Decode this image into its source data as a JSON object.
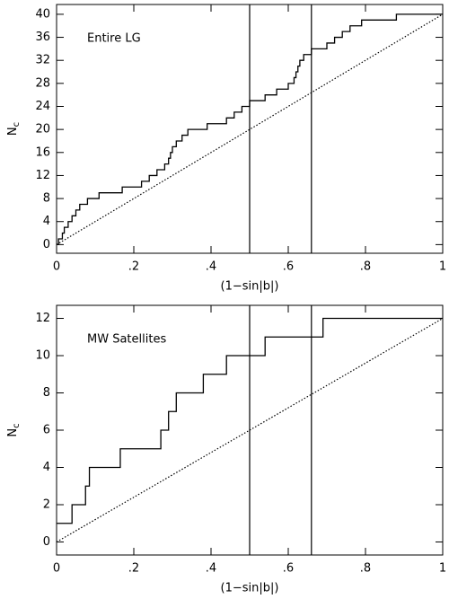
{
  "chart_data": [
    {
      "type": "step",
      "annotation": "Entire LG",
      "xlabel": "(1−sin|b|)",
      "ylabel": "N",
      "ylabel_sub": "c",
      "xlim": [
        0,
        1
      ],
      "ylim": [
        -1.5,
        41.7
      ],
      "xticks": [
        0,
        {
          "value": 0.2,
          "label": ".2"
        },
        {
          "value": 0.4,
          "label": ".4"
        },
        {
          "value": 0.6,
          "label": ".6"
        },
        {
          "value": 0.8,
          "label": ".8"
        },
        1
      ],
      "yticks": [
        0,
        4,
        8,
        12,
        16,
        20,
        24,
        28,
        32,
        36,
        40
      ],
      "vlines": [
        0.5,
        0.66
      ],
      "series": [
        {
          "style": "step",
          "color": "#000000",
          "x": [
            0,
            0.005,
            0.015,
            0.02,
            0.03,
            0.04,
            0.05,
            0.06,
            0.08,
            0.11,
            0.17,
            0.22,
            0.24,
            0.26,
            0.28,
            0.29,
            0.295,
            0.3,
            0.31,
            0.325,
            0.34,
            0.39,
            0.44,
            0.46,
            0.48,
            0.5,
            0.54,
            0.57,
            0.6,
            0.615,
            0.62,
            0.625,
            0.63,
            0.64,
            0.66,
            0.7,
            0.72,
            0.74,
            0.76,
            0.79,
            0.88,
            1
          ],
          "values": [
            0,
            1,
            2,
            3,
            4,
            5,
            6,
            7,
            8,
            9,
            10,
            11,
            12,
            13,
            14,
            15,
            16,
            17,
            18,
            19,
            20,
            21,
            22,
            23,
            24,
            25,
            26,
            27,
            28,
            29,
            30,
            31,
            32,
            33,
            34,
            35,
            36,
            37,
            38,
            39,
            40,
            40
          ]
        },
        {
          "style": "dotted",
          "color": "#000000",
          "x": [
            0,
            1
          ],
          "values": [
            0,
            40
          ]
        }
      ]
    },
    {
      "type": "step",
      "annotation": "MW Satellites",
      "xlabel": "(1−sin|b|)",
      "ylabel": "N",
      "ylabel_sub": "c",
      "xlim": [
        0,
        1
      ],
      "ylim": [
        -0.7,
        12.7
      ],
      "xticks": [
        0,
        {
          "value": 0.2,
          "label": ".2"
        },
        {
          "value": 0.4,
          "label": ".4"
        },
        {
          "value": 0.6,
          "label": ".6"
        },
        {
          "value": 0.8,
          "label": ".8"
        },
        1
      ],
      "yticks": [
        0,
        2,
        4,
        6,
        8,
        10,
        12
      ],
      "vlines": [
        0.5,
        0.66
      ],
      "series": [
        {
          "style": "step",
          "color": "#000000",
          "x": [
            0,
            0.04,
            0.075,
            0.085,
            0.165,
            0.27,
            0.29,
            0.31,
            0.38,
            0.44,
            0.54,
            0.69,
            1
          ],
          "values": [
            1,
            2,
            3,
            4,
            5,
            6,
            7,
            8,
            9,
            10,
            11,
            12,
            12
          ]
        },
        {
          "style": "dotted",
          "color": "#000000",
          "x": [
            0,
            1
          ],
          "values": [
            0,
            12
          ]
        }
      ]
    }
  ]
}
